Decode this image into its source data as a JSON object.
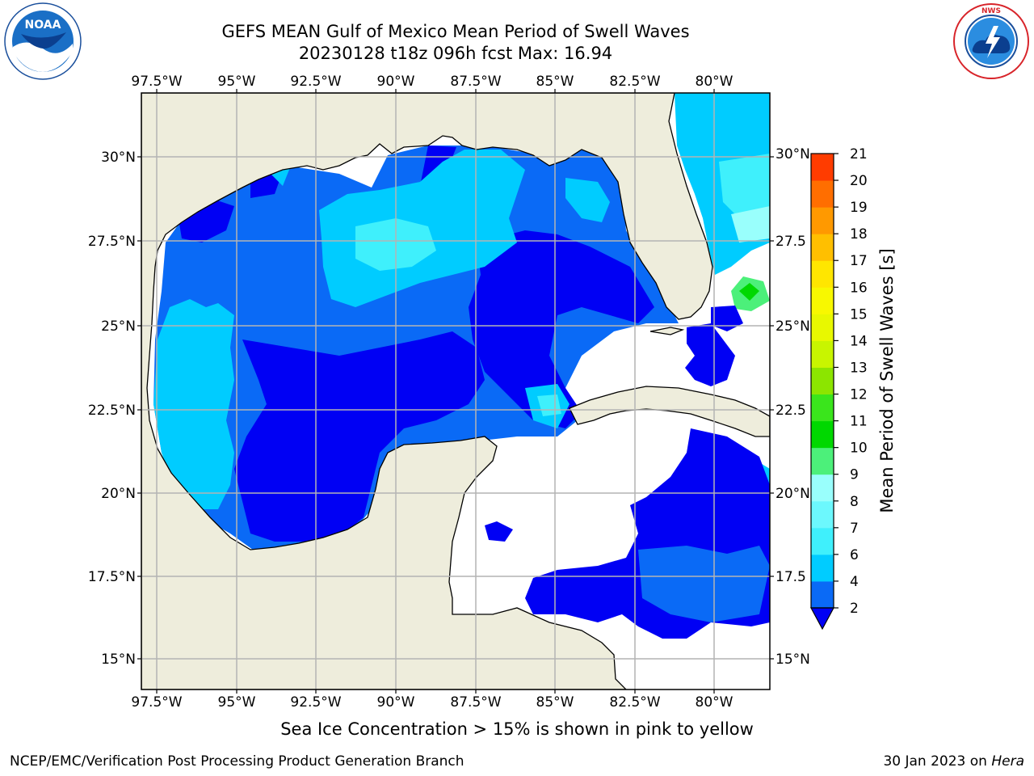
{
  "header": {
    "title_line1": "GEFS MEAN Gulf of Mexico Mean Period of Swell Waves",
    "title_line2": "20230128 t18z 096h fcst   Max: 16.94"
  },
  "logos": {
    "left": "NOAA",
    "left_ring_text": "NATIONAL OCEANIC AND ATMOSPHERIC ADMINISTRATION · U.S. DEPARTMENT OF COMMERCE",
    "right_ring_text": "NATIONAL WEATHER SERVICE"
  },
  "map": {
    "lon_labels": [
      "97.5°W",
      "95°W",
      "92.5°W",
      "90°W",
      "87.5°W",
      "85°W",
      "82.5°W",
      "80°W"
    ],
    "lat_labels_left": [
      "30°N",
      "27.5°N",
      "25°N",
      "22.5°N",
      "20°N",
      "17.5°N",
      "15°N"
    ],
    "lat_labels_right": [
      "30°N",
      "27.5",
      "25°N",
      "22.5",
      "20°N",
      "17.5",
      "15°N"
    ],
    "land_color": "#eeeddc",
    "grid_color": "#b4b4b4"
  },
  "colorbar": {
    "label": "Mean Period of Swell Waves [s]",
    "ticks": [
      "2",
      "4",
      "6",
      "7",
      "8",
      "9",
      "10",
      "11",
      "12",
      "13",
      "14",
      "15",
      "16",
      "17",
      "18",
      "19",
      "20",
      "21"
    ],
    "colors": [
      "#0a6af6",
      "#00ccff",
      "#3ff0fc",
      "#6cf8fd",
      "#99fffc",
      "#4cf07a",
      "#00d800",
      "#3ae51c",
      "#8ce500",
      "#c8f500",
      "#e8f800",
      "#f8f800",
      "#ffe600",
      "#ffbf00",
      "#ff9900",
      "#ff6e00",
      "#ff3c00",
      "#ff0000"
    ],
    "under_color": "#0000f4"
  },
  "note": "Sea Ice Concentration > 15% is shown in pink to yellow",
  "footer": {
    "left": "NCEP/EMC/Verification Post Processing Product Generation Branch",
    "right_date": "30 Jan 2023 on ",
    "right_host": "Hera"
  }
}
